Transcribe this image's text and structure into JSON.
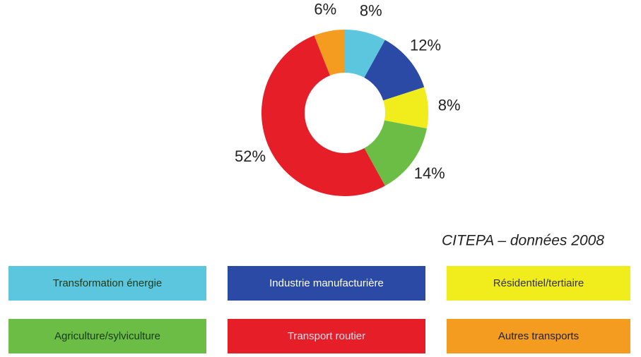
{
  "chart_data": {
    "type": "donut",
    "categories": [
      "Transformation énergie",
      "Industrie manufacturière",
      "Résidentiel/tertiaire",
      "Agriculture/sylviculture",
      "Transport routier",
      "Autres transports"
    ],
    "values": [
      8,
      12,
      8,
      14,
      52,
      6
    ],
    "value_labels": [
      "8%",
      "12%",
      "8%",
      "14%",
      "52%",
      "6%"
    ],
    "colors": [
      "#5cc6df",
      "#2b4aa6",
      "#f1ec1c",
      "#6bbd45",
      "#e61e27",
      "#f39c1f"
    ],
    "source": "CITEPA – données 2008"
  }
}
